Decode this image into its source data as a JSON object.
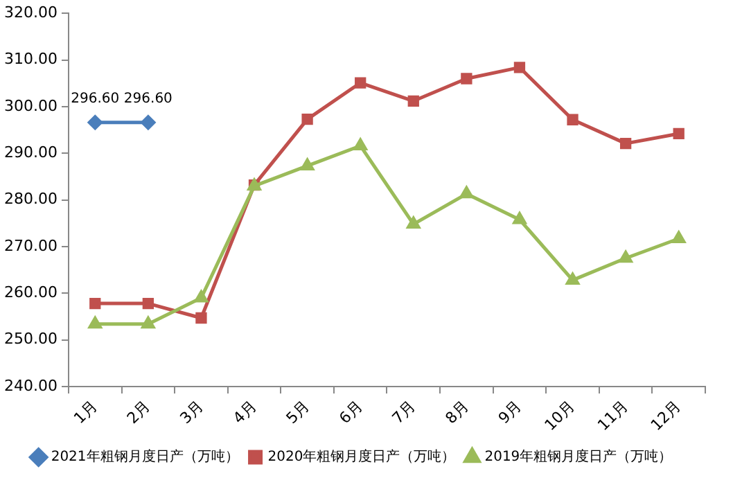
{
  "chart_data": {
    "type": "line",
    "categories": [
      "1月",
      "2月",
      "3月",
      "4月",
      "5月",
      "6月",
      "7月",
      "8月",
      "9月",
      "10月",
      "11月",
      "12月"
    ],
    "series": [
      {
        "name": "2021年粗钢月度日产（万吨）",
        "color": "#4a7ebb",
        "marker": "diamond",
        "values": [
          296.6,
          296.6,
          null,
          null,
          null,
          null,
          null,
          null,
          null,
          null,
          null,
          null
        ],
        "value_labels": [
          "296.60",
          "296.60",
          null,
          null,
          null,
          null,
          null,
          null,
          null,
          null,
          null,
          null
        ]
      },
      {
        "name": "2020年粗钢月度日产（万吨）",
        "color": "#c0504d",
        "marker": "square",
        "values": [
          257.8,
          257.8,
          254.7,
          283.2,
          297.3,
          305.1,
          301.2,
          306.0,
          308.4,
          297.2,
          292.1,
          294.2
        ]
      },
      {
        "name": "2019年粗钢月度日产（万吨）",
        "color": "#9bbb59",
        "marker": "triangle",
        "values": [
          253.4,
          253.4,
          259.0,
          283.0,
          287.3,
          291.6,
          274.8,
          281.3,
          275.8,
          262.8,
          267.5,
          271.7
        ]
      }
    ],
    "ylim": [
      240,
      320
    ],
    "yticks": [
      {
        "value": 240,
        "label": "240.00"
      },
      {
        "value": 250,
        "label": "250.00"
      },
      {
        "value": 260,
        "label": "260.00"
      },
      {
        "value": 270,
        "label": "270.00"
      },
      {
        "value": 280,
        "label": "280.00"
      },
      {
        "value": 290,
        "label": "290.00"
      },
      {
        "value": 300,
        "label": "300.00"
      },
      {
        "value": 310,
        "label": "310.00"
      },
      {
        "value": 320,
        "label": "320.00"
      }
    ],
    "legend": "bottom",
    "grid": false,
    "line_style": "solid"
  }
}
